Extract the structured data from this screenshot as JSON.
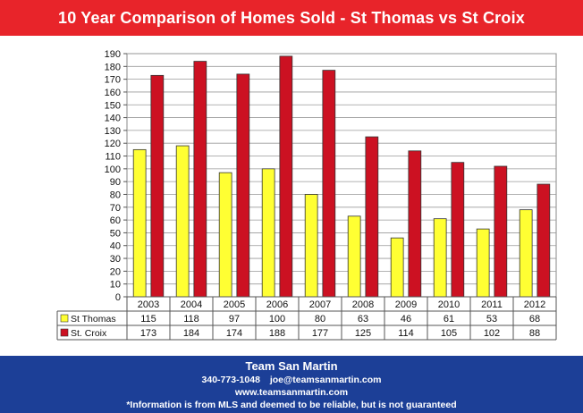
{
  "header": {
    "title": "10 Year Comparison of Homes Sold - St Thomas vs St Croix"
  },
  "colors": {
    "header_bg": "#e8242a",
    "footer_bg": "#1c3f97",
    "st_thomas": "#ffff33",
    "st_croix": "#cc1122"
  },
  "chart_data": {
    "type": "bar",
    "title": "",
    "xlabel": "",
    "ylabel": "",
    "ylim": [
      0,
      190
    ],
    "y_ticks": [
      0,
      10,
      20,
      30,
      40,
      50,
      60,
      70,
      80,
      90,
      100,
      110,
      120,
      130,
      140,
      150,
      160,
      170,
      180,
      190
    ],
    "grid": true,
    "legend": "data-table-left",
    "categories": [
      "2003",
      "2004",
      "2005",
      "2006",
      "2007",
      "2008",
      "2009",
      "2010",
      "2011",
      "2012"
    ],
    "series": [
      {
        "name": "St Thomas",
        "color": "#ffff33",
        "values": [
          115,
          118,
          97,
          100,
          80,
          63,
          46,
          61,
          53,
          68
        ]
      },
      {
        "name": "St. Croix",
        "color": "#cc1122",
        "values": [
          173,
          184,
          174,
          188,
          177,
          125,
          114,
          105,
          102,
          88
        ]
      }
    ]
  },
  "footer": {
    "team": "Team San Martin",
    "phone": "340-773-1048",
    "email": "joe@teamsanmartin.com",
    "website": "www.teamsanmartin.com",
    "disclaimer": "*Information is from MLS and deemed to be reliable, but is not guaranteed"
  }
}
